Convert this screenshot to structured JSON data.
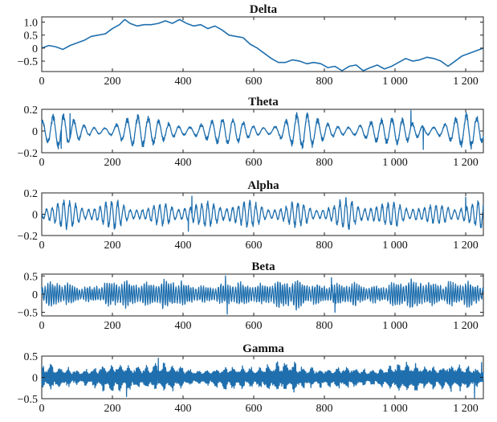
{
  "chart_data": [
    {
      "type": "line",
      "title": "Delta",
      "xlabel": "",
      "ylabel": "",
      "xlim": [
        0,
        1250
      ],
      "ylim": [
        -0.9,
        1.2
      ],
      "x_ticks": [
        0,
        200,
        400,
        600,
        800,
        1000,
        1200
      ],
      "x_tick_labels": [
        "0",
        "200",
        "400",
        "600",
        "800",
        "1 000",
        "1 200"
      ],
      "y_ticks": [
        1.0,
        0.5,
        0,
        -0.5
      ],
      "y_tick_labels": [
        "1.0",
        "0.5",
        "0",
        "−0.5"
      ],
      "color": "#1f6fae",
      "x": [
        0,
        20,
        40,
        60,
        80,
        100,
        120,
        140,
        160,
        180,
        200,
        220,
        235,
        250,
        270,
        290,
        310,
        330,
        350,
        370,
        390,
        410,
        430,
        450,
        470,
        490,
        510,
        530,
        550,
        570,
        590,
        610,
        630,
        650,
        670,
        690,
        710,
        730,
        750,
        770,
        790,
        810,
        830,
        850,
        870,
        890,
        910,
        930,
        950,
        970,
        990,
        1010,
        1030,
        1050,
        1070,
        1090,
        1110,
        1130,
        1150,
        1170,
        1190,
        1210,
        1230,
        1250
      ],
      "y": [
        0.0,
        0.1,
        0.05,
        -0.05,
        0.1,
        0.2,
        0.3,
        0.45,
        0.5,
        0.55,
        0.75,
        0.9,
        1.1,
        0.95,
        0.85,
        0.9,
        0.9,
        0.95,
        1.05,
        0.95,
        1.1,
        0.95,
        0.85,
        0.9,
        0.75,
        0.85,
        0.7,
        0.5,
        0.45,
        0.4,
        0.15,
        0.0,
        -0.2,
        -0.4,
        -0.55,
        -0.55,
        -0.45,
        -0.5,
        -0.6,
        -0.55,
        -0.6,
        -0.75,
        -0.7,
        -0.9,
        -0.7,
        -0.65,
        -0.9,
        -0.75,
        -0.65,
        -0.8,
        -0.7,
        -0.55,
        -0.4,
        -0.5,
        -0.45,
        -0.35,
        -0.4,
        -0.5,
        -0.7,
        -0.5,
        -0.3,
        -0.2,
        -0.1,
        0.0
      ]
    },
    {
      "type": "line",
      "title": "Theta",
      "xlabel": "",
      "ylabel": "",
      "xlim": [
        0,
        1250
      ],
      "ylim": [
        -0.2,
        0.2
      ],
      "x_ticks": [
        0,
        200,
        400,
        600,
        800,
        1000,
        1200
      ],
      "x_tick_labels": [
        "0",
        "200",
        "400",
        "600",
        "800",
        "1 000",
        "1 200"
      ],
      "y_ticks": [
        0.2,
        0,
        -0.2
      ],
      "y_tick_labels": [
        "0.2",
        "0",
        "−0.2"
      ],
      "color": "#1f6fae",
      "signal": {
        "base": 0.08,
        "amp_var": 0.05,
        "period": 30,
        "seed": 3,
        "extremes": [
          [
            1045,
            0.19
          ],
          [
            1080,
            -0.17
          ],
          [
            55,
            -0.16
          ],
          [
            80,
            0.16
          ]
        ]
      }
    },
    {
      "type": "line",
      "title": "Alpha",
      "xlabel": "",
      "ylabel": "",
      "xlim": [
        0,
        1250
      ],
      "ylim": [
        -0.2,
        0.2
      ],
      "x_ticks": [
        0,
        200,
        400,
        600,
        800,
        1000,
        1200
      ],
      "x_tick_labels": [
        "0",
        "200",
        "400",
        "600",
        "800",
        "1 000",
        "1 200"
      ],
      "y_ticks": [
        0.2,
        0,
        -0.2
      ],
      "y_tick_labels": [
        "0.2",
        "0",
        "−0.2"
      ],
      "color": "#1f6fae",
      "signal": {
        "base": 0.07,
        "amp_var": 0.05,
        "period": 17,
        "seed": 7,
        "extremes": [
          [
            425,
            0.17
          ],
          [
            415,
            -0.16
          ],
          [
            1200,
            0.16
          ]
        ]
      }
    },
    {
      "type": "line",
      "title": "Beta",
      "xlabel": "",
      "ylabel": "",
      "xlim": [
        0,
        1250
      ],
      "ylim": [
        -0.6,
        0.55
      ],
      "x_ticks": [
        0,
        200,
        400,
        600,
        800,
        1000,
        1200
      ],
      "x_tick_labels": [
        "0",
        "200",
        "400",
        "600",
        "800",
        "1 000",
        "1 200"
      ],
      "y_ticks": [
        0.5,
        0,
        -0.5
      ],
      "y_tick_labels": [
        "0.5",
        "0",
        "−0.5"
      ],
      "color": "#1f6fae",
      "signal": {
        "base": 0.2,
        "amp_var": 0.18,
        "period": 7,
        "seed": 11,
        "extremes": [
          [
            525,
            -0.55
          ],
          [
            520,
            0.5
          ],
          [
            820,
            0.45
          ],
          [
            830,
            -0.5
          ]
        ]
      }
    },
    {
      "type": "line",
      "title": "Gamma",
      "xlabel": "",
      "ylabel": "",
      "xlim": [
        0,
        1250
      ],
      "ylim": [
        -0.5,
        0.5
      ],
      "x_ticks": [
        0,
        200,
        400,
        600,
        800,
        1000,
        1200
      ],
      "x_tick_labels": [
        "0",
        "200",
        "400",
        "600",
        "800",
        "1 000",
        "1 200"
      ],
      "y_ticks": [
        0.5,
        0,
        -0.5
      ],
      "y_tick_labels": [
        "0.5",
        "0",
        "−0.5"
      ],
      "color": "#1f6fae",
      "signal": {
        "base": 0.15,
        "amp_var": 0.16,
        "period": 3.2,
        "seed": 19,
        "extremes": [
          [
            330,
            0.45
          ],
          [
            240,
            -0.45
          ],
          [
            1225,
            -0.5
          ],
          [
            1245,
            0.35
          ]
        ]
      }
    }
  ]
}
